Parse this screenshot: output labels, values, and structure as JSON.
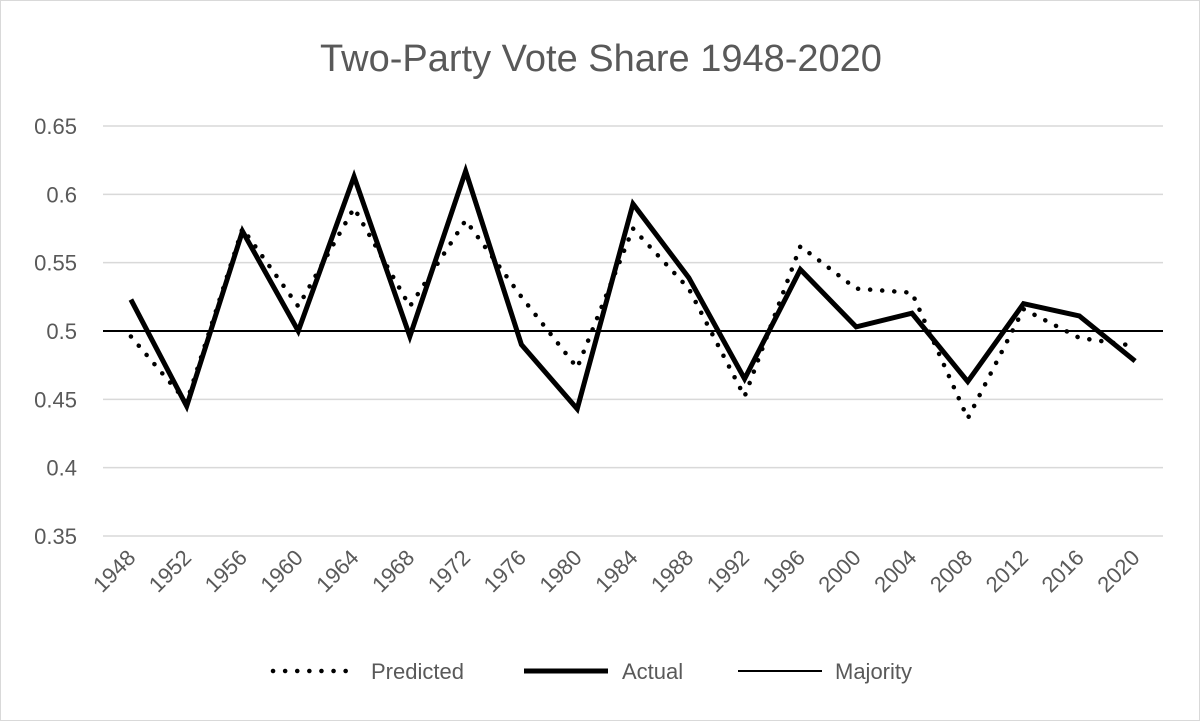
{
  "chart_data": {
    "type": "line",
    "title": "Two-Party Vote Share 1948-2020",
    "xlabel": "",
    "ylabel": "",
    "categories": [
      "1948",
      "1952",
      "1956",
      "1960",
      "1964",
      "1968",
      "1972",
      "1976",
      "1980",
      "1984",
      "1988",
      "1992",
      "1996",
      "2000",
      "2004",
      "2008",
      "2012",
      "2016",
      "2020"
    ],
    "y_ticks": [
      "0.35",
      "0.4",
      "0.45",
      "0.5",
      "0.55",
      "0.6",
      "0.65"
    ],
    "ylim": [
      0.35,
      0.65
    ],
    "grid": true,
    "legend_position": "bottom",
    "series": [
      {
        "name": "Predicted",
        "style": "dotted",
        "color": "#000000",
        "values": [
          0.496,
          0.448,
          0.575,
          0.518,
          0.59,
          0.518,
          0.581,
          0.525,
          0.473,
          0.575,
          0.531,
          0.452,
          0.562,
          0.531,
          0.528,
          0.436,
          0.516,
          0.495,
          0.489
        ]
      },
      {
        "name": "Actual",
        "style": "solid-thick",
        "color": "#000000",
        "values": [
          0.523,
          0.445,
          0.573,
          0.5,
          0.613,
          0.496,
          0.617,
          0.49,
          0.443,
          0.593,
          0.539,
          0.465,
          0.545,
          0.503,
          0.513,
          0.463,
          0.52,
          0.511,
          0.478
        ]
      },
      {
        "name": "Majority",
        "style": "solid-thin",
        "color": "#000000",
        "values": [
          0.5,
          0.5,
          0.5,
          0.5,
          0.5,
          0.5,
          0.5,
          0.5,
          0.5,
          0.5,
          0.5,
          0.5,
          0.5,
          0.5,
          0.5,
          0.5,
          0.5,
          0.5,
          0.5
        ]
      }
    ],
    "colors": {
      "grid": "#d9d9d9",
      "text": "#595959",
      "border": "#d9d9d9"
    }
  }
}
